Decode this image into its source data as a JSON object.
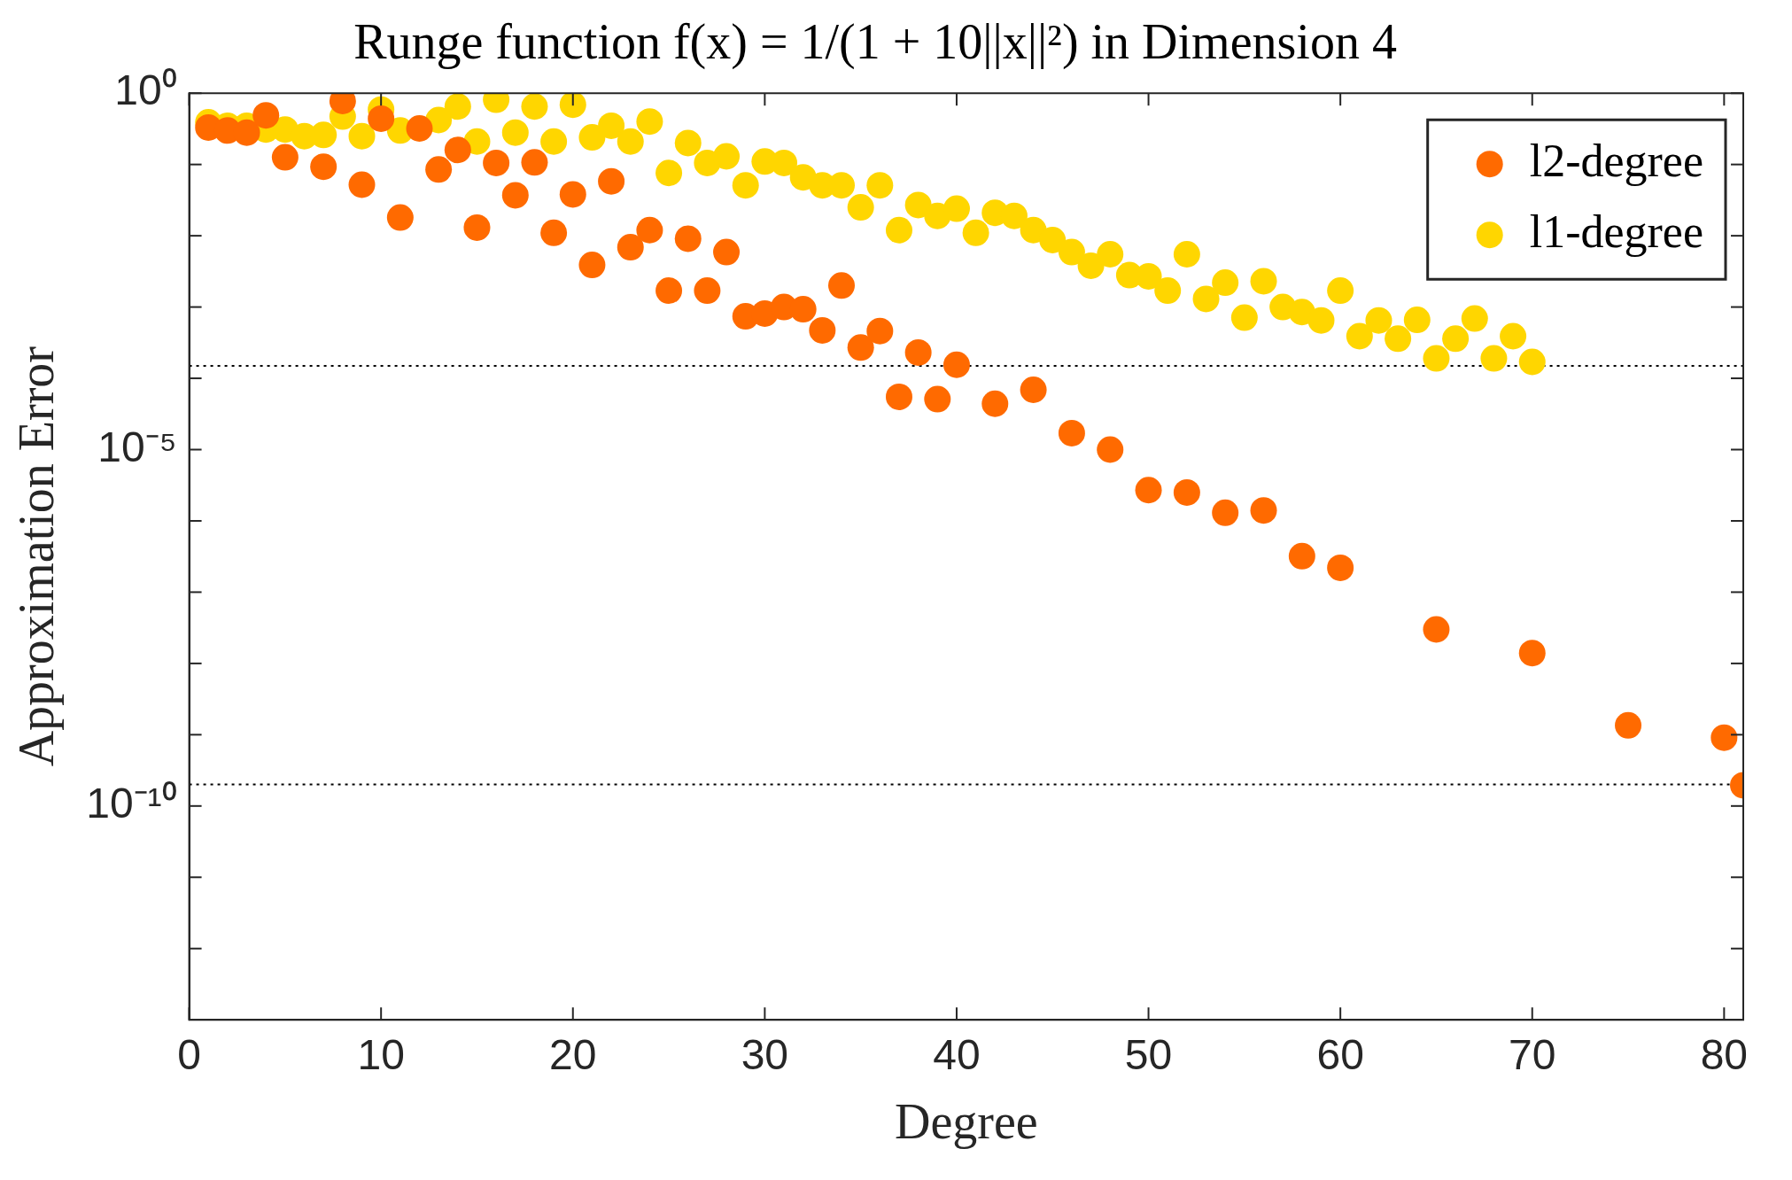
{
  "chart_data": {
    "type": "scatter",
    "title": "Runge function f(x) = 1/(1 + 10||x||²) in Dimension 4",
    "xlabel": "Degree",
    "ylabel": "Approximation Error",
    "xlim": [
      0,
      81
    ],
    "xticks": [
      0,
      10,
      20,
      30,
      40,
      50,
      60,
      70,
      80
    ],
    "ylim": [
      1e-13,
      1
    ],
    "log": "y",
    "yticks": [
      {
        "value": 1,
        "label": "10⁰"
      },
      {
        "value": 0.1,
        "label": null
      },
      {
        "value": 0.01,
        "label": null
      },
      {
        "value": 0.001,
        "label": null
      },
      {
        "value": 0.0001,
        "label": null
      },
      {
        "value": 1e-05,
        "label": "10⁻⁵"
      },
      {
        "value": 1e-06,
        "label": null
      },
      {
        "value": 1e-07,
        "label": null
      },
      {
        "value": 1e-08,
        "label": null
      },
      {
        "value": 1e-09,
        "label": null
      },
      {
        "value": 1e-10,
        "label": "10⁻¹⁰"
      },
      {
        "value": 1e-11,
        "label": null
      },
      {
        "value": 1e-12,
        "label": null
      }
    ],
    "grid": false,
    "legend": "top right",
    "marker": "circle",
    "ref_lines": [
      {
        "axis": "y",
        "value": 0.00015,
        "color": "#000000",
        "line_style": "dotted"
      },
      {
        "axis": "y",
        "value": 2e-10,
        "color": "#000000",
        "line_style": "dotted"
      }
    ],
    "series": [
      {
        "name": "l2-degree",
        "color": "#ff6a00",
        "x": [
          1,
          2,
          3,
          4,
          5,
          7,
          8,
          9,
          10,
          11,
          12,
          13,
          14,
          15,
          16,
          17,
          18,
          19,
          20,
          21,
          22,
          23,
          24,
          25,
          26,
          27,
          28,
          29,
          30,
          31,
          32,
          33,
          34,
          35,
          36,
          37,
          38,
          39,
          40,
          42,
          44,
          46,
          48,
          50,
          52,
          54,
          56,
          58,
          60,
          65,
          70,
          75,
          80,
          81
        ],
        "values": [
          0.33,
          0.3,
          0.28,
          0.49,
          0.126,
          0.093,
          0.78,
          0.052,
          0.44,
          0.018,
          0.32,
          0.085,
          0.16,
          0.013,
          0.105,
          0.037,
          0.107,
          0.011,
          0.038,
          0.0039,
          0.058,
          0.0069,
          0.012,
          0.0017,
          0.0091,
          0.0017,
          0.0059,
          0.00074,
          0.00081,
          0.001,
          0.00093,
          0.00047,
          0.002,
          0.00027,
          0.00046,
          5.5e-05,
          0.00023,
          5.1e-05,
          0.000155,
          4.4e-05,
          6.9e-05,
          1.7e-05,
          1e-05,
          2.7e-06,
          2.5e-06,
          1.3e-06,
          1.4e-06,
          3.2e-07,
          2.2e-07,
          3e-08,
          1.4e-08,
          1.35e-09,
          9.1e-10,
          1.95e-10
        ]
      },
      {
        "name": "l1-degree",
        "color": "#ffd600",
        "x": [
          1,
          2,
          3,
          4,
          5,
          6,
          7,
          8,
          9,
          10,
          11,
          13,
          14,
          15,
          16,
          17,
          18,
          19,
          20,
          21,
          22,
          23,
          24,
          25,
          26,
          27,
          28,
          29,
          30,
          31,
          32,
          33,
          34,
          35,
          36,
          37,
          38,
          39,
          40,
          41,
          42,
          43,
          44,
          45,
          46,
          47,
          48,
          49,
          50,
          51,
          52,
          53,
          54,
          55,
          56,
          57,
          58,
          59,
          60,
          61,
          62,
          63,
          64,
          65,
          66,
          67,
          68,
          69,
          70
        ],
        "values": [
          0.39,
          0.35,
          0.35,
          0.31,
          0.31,
          0.25,
          0.26,
          0.47,
          0.25,
          0.59,
          0.3,
          0.42,
          0.65,
          0.21,
          0.81,
          0.28,
          0.65,
          0.21,
          0.69,
          0.24,
          0.35,
          0.21,
          0.4,
          0.076,
          0.2,
          0.105,
          0.13,
          0.051,
          0.11,
          0.105,
          0.066,
          0.051,
          0.051,
          0.025,
          0.051,
          0.012,
          0.027,
          0.019,
          0.024,
          0.011,
          0.021,
          0.019,
          0.012,
          0.0087,
          0.0059,
          0.0038,
          0.0055,
          0.0028,
          0.0027,
          0.0017,
          0.0055,
          0.0013,
          0.0022,
          0.00071,
          0.0023,
          0.001,
          0.00085,
          0.00065,
          0.0017,
          0.00039,
          0.00065,
          0.00036,
          0.00066,
          0.00019,
          0.00036,
          0.00069,
          0.00019,
          0.00039,
          0.00017
        ]
      }
    ]
  }
}
